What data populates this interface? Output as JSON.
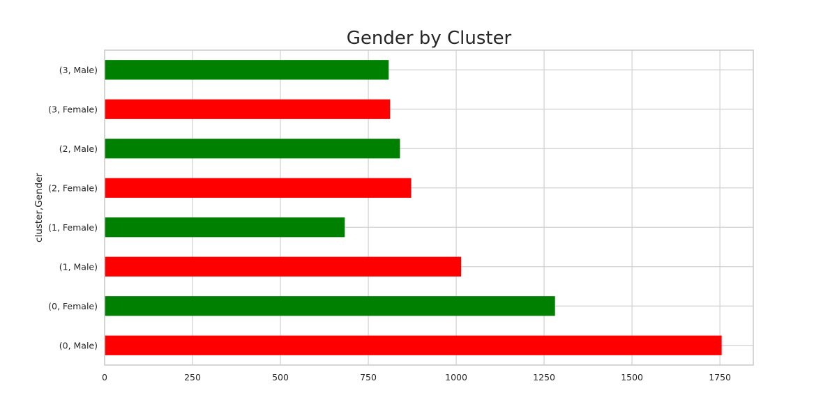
{
  "chart_data": {
    "type": "bar",
    "orientation": "horizontal",
    "title": "Gender by Cluster",
    "xlabel": "",
    "ylabel": "cluster,Gender",
    "categories": [
      "(0, Male)",
      "(0, Female)",
      "(1, Male)",
      "(1, Female)",
      "(2, Female)",
      "(2, Male)",
      "(3, Female)",
      "(3, Male)"
    ],
    "values": [
      1755,
      1281,
      1014,
      683,
      872,
      840,
      812,
      808
    ],
    "bar_colors": [
      "#ff0000",
      "#008000",
      "#ff0000",
      "#008000",
      "#ff0000",
      "#008000",
      "#ff0000",
      "#008000"
    ],
    "xlim": [
      0,
      1845
    ],
    "xticks": [
      0,
      250,
      500,
      750,
      1000,
      1250,
      1500,
      1750
    ],
    "xtick_labels": [
      "0",
      "250",
      "500",
      "750",
      "1000",
      "1250",
      "1500",
      "1750"
    ],
    "grid": true,
    "legend": "none",
    "colors": {
      "grid": "#d0d0d0",
      "frame": "#cccccc",
      "text": "#262626"
    }
  }
}
